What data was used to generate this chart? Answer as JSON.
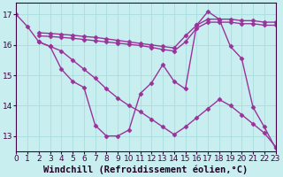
{
  "xlabel": "Windchill (Refroidissement éolien,°C)",
  "bg_color": "#c8eef0",
  "line_color": "#993399",
  "grid_color": "#aadddd",
  "xlim": [
    0,
    23
  ],
  "ylim": [
    12.5,
    17.4
  ],
  "yticks": [
    13,
    14,
    15,
    16,
    17
  ],
  "xticks": [
    0,
    1,
    2,
    3,
    4,
    5,
    6,
    7,
    8,
    9,
    10,
    11,
    12,
    13,
    14,
    15,
    16,
    17,
    18,
    19,
    20,
    21,
    22,
    23
  ],
  "lines": [
    {
      "x": [
        0,
        1,
        2,
        3,
        4,
        5,
        6,
        7,
        8,
        9,
        10,
        11,
        12,
        13,
        14,
        15,
        16,
        17,
        18,
        19,
        20,
        21,
        22,
        23
      ],
      "y": [
        17.0,
        16.6,
        16.1,
        15.95,
        15.2,
        14.8,
        14.6,
        13.35,
        13.0,
        13.0,
        13.2,
        14.4,
        14.75,
        15.35,
        14.8,
        14.55,
        16.65,
        17.1,
        16.85,
        15.95,
        15.55,
        13.95,
        13.3,
        12.6
      ]
    },
    {
      "x": [
        2,
        3,
        4,
        5,
        6,
        7,
        8,
        9,
        10,
        11,
        12,
        13,
        14,
        15,
        16,
        17,
        18,
        19,
        20,
        21,
        22,
        23
      ],
      "y": [
        16.4,
        16.38,
        16.35,
        16.32,
        16.28,
        16.25,
        16.2,
        16.15,
        16.1,
        16.05,
        16.0,
        15.95,
        15.9,
        16.3,
        16.65,
        16.85,
        16.85,
        16.85,
        16.8,
        16.8,
        16.75,
        16.75
      ]
    },
    {
      "x": [
        2,
        3,
        4,
        5,
        6,
        7,
        8,
        9,
        10,
        11,
        12,
        13,
        14,
        15,
        16,
        17,
        18,
        19,
        20,
        21,
        22,
        23
      ],
      "y": [
        16.3,
        16.28,
        16.25,
        16.22,
        16.18,
        16.14,
        16.1,
        16.06,
        16.02,
        15.98,
        15.92,
        15.85,
        15.8,
        16.1,
        16.55,
        16.75,
        16.75,
        16.75,
        16.7,
        16.7,
        16.65,
        16.65
      ]
    },
    {
      "x": [
        2,
        3,
        4,
        5,
        6,
        7,
        8,
        9,
        10,
        11,
        12,
        13,
        14,
        15,
        16,
        17,
        18,
        19,
        20,
        21,
        22,
        23
      ],
      "y": [
        16.1,
        15.95,
        15.8,
        15.5,
        15.2,
        14.9,
        14.55,
        14.25,
        14.0,
        13.8,
        13.55,
        13.3,
        13.05,
        13.3,
        13.6,
        13.9,
        14.2,
        14.0,
        13.7,
        13.4,
        13.1,
        12.65
      ]
    }
  ],
  "marker": "D",
  "markersize": 2.5,
  "linewidth": 1.0,
  "tick_fontsize": 6.5,
  "xlabel_fontsize": 7.5
}
